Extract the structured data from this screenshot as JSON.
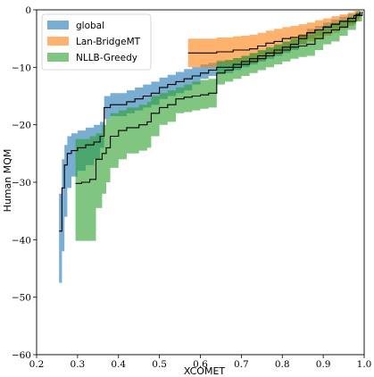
{
  "chart_data": {
    "type": "area",
    "title": "",
    "xlabel": "XCOMET",
    "ylabel": "Human MQM",
    "xlim": [
      0.2,
      1.0
    ],
    "ylim": [
      -60,
      0
    ],
    "x_ticks": [
      0.2,
      0.3,
      0.4,
      0.5,
      0.6,
      0.7,
      0.8,
      0.9,
      1.0
    ],
    "x_tick_labels": [
      "0.2",
      "0.3",
      "0.4",
      "0.5",
      "0.6",
      "0.7",
      "0.8",
      "0.9",
      "1.0"
    ],
    "y_ticks": [
      0,
      -10,
      -20,
      -30,
      -40,
      -50,
      -60
    ],
    "y_tick_labels": [
      "0",
      "−10",
      "−20",
      "−30",
      "−40",
      "−50",
      "−60"
    ],
    "grid": false,
    "legend_position": "top-left",
    "series": [
      {
        "name": "global",
        "color": "#1f77b4",
        "x": [
          0.255,
          0.262,
          0.268,
          0.275,
          0.285,
          0.3,
          0.32,
          0.34,
          0.355,
          0.365,
          0.38,
          0.4,
          0.42,
          0.44,
          0.46,
          0.48,
          0.5,
          0.52,
          0.54,
          0.56,
          0.58,
          0.6,
          0.62,
          0.64,
          0.66,
          0.68,
          0.7,
          0.72,
          0.74,
          0.76,
          0.78,
          0.8,
          0.82,
          0.84,
          0.86,
          0.88,
          0.9,
          0.92,
          0.94,
          0.96,
          0.98,
          0.99
        ],
        "mean": [
          -38.5,
          -31,
          -27,
          -25,
          -24.5,
          -24,
          -23.5,
          -23,
          -22,
          -17,
          -16.5,
          -16.5,
          -16,
          -15.5,
          -15,
          -14.5,
          -13.5,
          -13,
          -12.5,
          -12,
          -11.5,
          -11,
          -10.5,
          -10,
          -10,
          -9.5,
          -9,
          -8.5,
          -8,
          -7.5,
          -7,
          -6.5,
          -6,
          -5,
          -4,
          -3.5,
          -3,
          -2.5,
          -2,
          -1.5,
          -0.8,
          -0.3
        ],
        "lower": [
          -47.5,
          -42,
          -36,
          -31,
          -29,
          -28,
          -27,
          -26,
          -24,
          -19,
          -18.5,
          -18.5,
          -18,
          -17.5,
          -17,
          -16.5,
          -15.5,
          -15,
          -14.5,
          -14,
          -13,
          -12,
          -11.5,
          -11,
          -11,
          -10.5,
          -10,
          -9.5,
          -9,
          -8.5,
          -8,
          -7.5,
          -7,
          -6,
          -5,
          -4.5,
          -4,
          -3.5,
          -3,
          -2.5,
          -1.5,
          -0.8
        ],
        "upper": [
          -32,
          -26,
          -23.5,
          -22,
          -21.5,
          -21,
          -20.5,
          -20,
          -19.5,
          -15,
          -14.5,
          -14.5,
          -14,
          -13.5,
          -13,
          -12.5,
          -11.8,
          -11.3,
          -10.8,
          -10.3,
          -10,
          -9.5,
          -9.2,
          -8.8,
          -8.8,
          -8.4,
          -8,
          -7.6,
          -7.1,
          -6.6,
          -6.1,
          -5.6,
          -5.1,
          -4.2,
          -3.3,
          -2.8,
          -2.2,
          -1.7,
          -1.2,
          -0.7,
          -0.2,
          0
        ]
      },
      {
        "name": "Lan-BridgeMT",
        "color": "#ff7f0e",
        "x": [
          0.57,
          0.6,
          0.64,
          0.68,
          0.7,
          0.72,
          0.74,
          0.76,
          0.78,
          0.8,
          0.82,
          0.84,
          0.86,
          0.88,
          0.9,
          0.92,
          0.94,
          0.96,
          0.975,
          0.99
        ],
        "mean": [
          -7.5,
          -7.5,
          -7.3,
          -7,
          -7,
          -6.8,
          -6.3,
          -5.8,
          -5.5,
          -5,
          -4.8,
          -4.5,
          -4,
          -3.5,
          -3,
          -2.5,
          -2,
          -1.5,
          -1,
          -0.4
        ],
        "lower": [
          -10,
          -10,
          -9.5,
          -9.3,
          -9.2,
          -9,
          -8.5,
          -8,
          -7.5,
          -7,
          -6.5,
          -6,
          -5.5,
          -5,
          -4.5,
          -4,
          -3.3,
          -2.8,
          -2,
          -1
        ],
        "upper": [
          -5,
          -5,
          -4.8,
          -4.6,
          -4.5,
          -4.3,
          -4,
          -3.6,
          -3.3,
          -3,
          -2.8,
          -2.5,
          -2.2,
          -1.8,
          -1.5,
          -1.1,
          -0.8,
          -0.5,
          -0.2,
          0
        ]
      },
      {
        "name": "NLLB-Greedy",
        "color": "#2ca02c",
        "x": [
          0.295,
          0.31,
          0.33,
          0.345,
          0.36,
          0.37,
          0.38,
          0.4,
          0.42,
          0.45,
          0.47,
          0.48,
          0.5,
          0.52,
          0.54,
          0.56,
          0.58,
          0.6,
          0.62,
          0.64,
          0.66,
          0.68,
          0.7,
          0.72,
          0.74,
          0.76,
          0.78,
          0.8,
          0.82,
          0.84,
          0.86,
          0.88,
          0.9,
          0.92,
          0.94,
          0.96,
          0.98,
          0.995
        ],
        "mean": [
          -30.2,
          -30,
          -29.5,
          -26,
          -25,
          -24,
          -22,
          -21,
          -20.5,
          -20,
          -19.5,
          -18,
          -17,
          -16.5,
          -15.5,
          -15.2,
          -15,
          -14.8,
          -14.5,
          -11,
          -10.5,
          -10,
          -9.5,
          -9,
          -8.5,
          -8,
          -7.5,
          -7,
          -6.5,
          -6.3,
          -6,
          -5,
          -4,
          -3.5,
          -3,
          -2,
          -1,
          -0.3
        ],
        "lower": [
          -40.2,
          -40.2,
          -40.2,
          -34.5,
          -32,
          -30,
          -27.5,
          -26,
          -25,
          -24.5,
          -24,
          -22,
          -20,
          -19.5,
          -18,
          -17.8,
          -17.5,
          -17.2,
          -17,
          -13,
          -12.5,
          -12,
          -11.5,
          -11,
          -10.5,
          -10,
          -9.5,
          -9,
          -8.5,
          -8.2,
          -8,
          -7,
          -6,
          -5.5,
          -4.5,
          -3.5,
          -2,
          -1
        ],
        "upper": [
          -22.5,
          -22.5,
          -22,
          -21.5,
          -20,
          -19,
          -18,
          -17.5,
          -17,
          -16.5,
          -16,
          -15,
          -14.5,
          -14,
          -13.5,
          -13,
          -12.5,
          -12.2,
          -12,
          -9,
          -8.7,
          -8.4,
          -8,
          -7.5,
          -7,
          -6.5,
          -6,
          -5.5,
          -5,
          -4.7,
          -4.3,
          -3.5,
          -2.8,
          -2.3,
          -1.8,
          -1.2,
          -0.5,
          0
        ]
      }
    ]
  }
}
